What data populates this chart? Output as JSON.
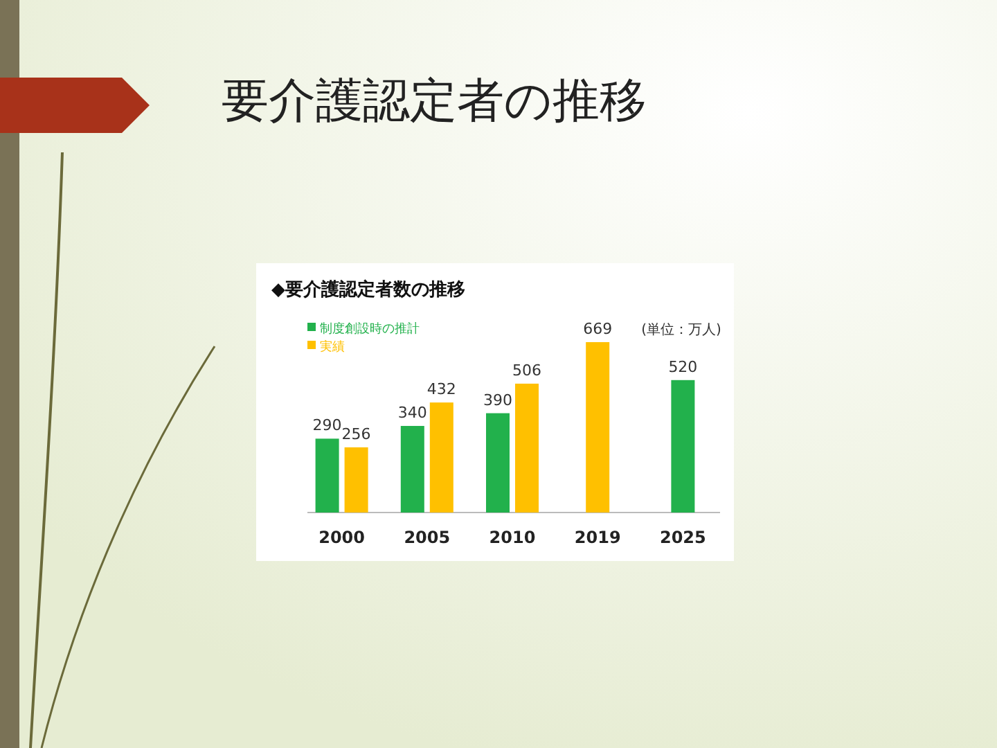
{
  "chart_data": {
    "type": "bar",
    "title": "要介護認定者の推移",
    "subtitle": "◆要介護認定者数の推移",
    "annotations": [
      "(単位：万人)"
    ],
    "categories": [
      "2000",
      "2005",
      "2010",
      "2019",
      "2025"
    ],
    "series": [
      {
        "name": "制度創設時の推計",
        "color": "#22b14c",
        "values": [
          290,
          340,
          390,
          null,
          520
        ]
      },
      {
        "name": "実績",
        "color": "#ffc000",
        "values": [
          256,
          432,
          506,
          669,
          null
        ]
      }
    ],
    "data_labels": true,
    "legend": "top left"
  }
}
